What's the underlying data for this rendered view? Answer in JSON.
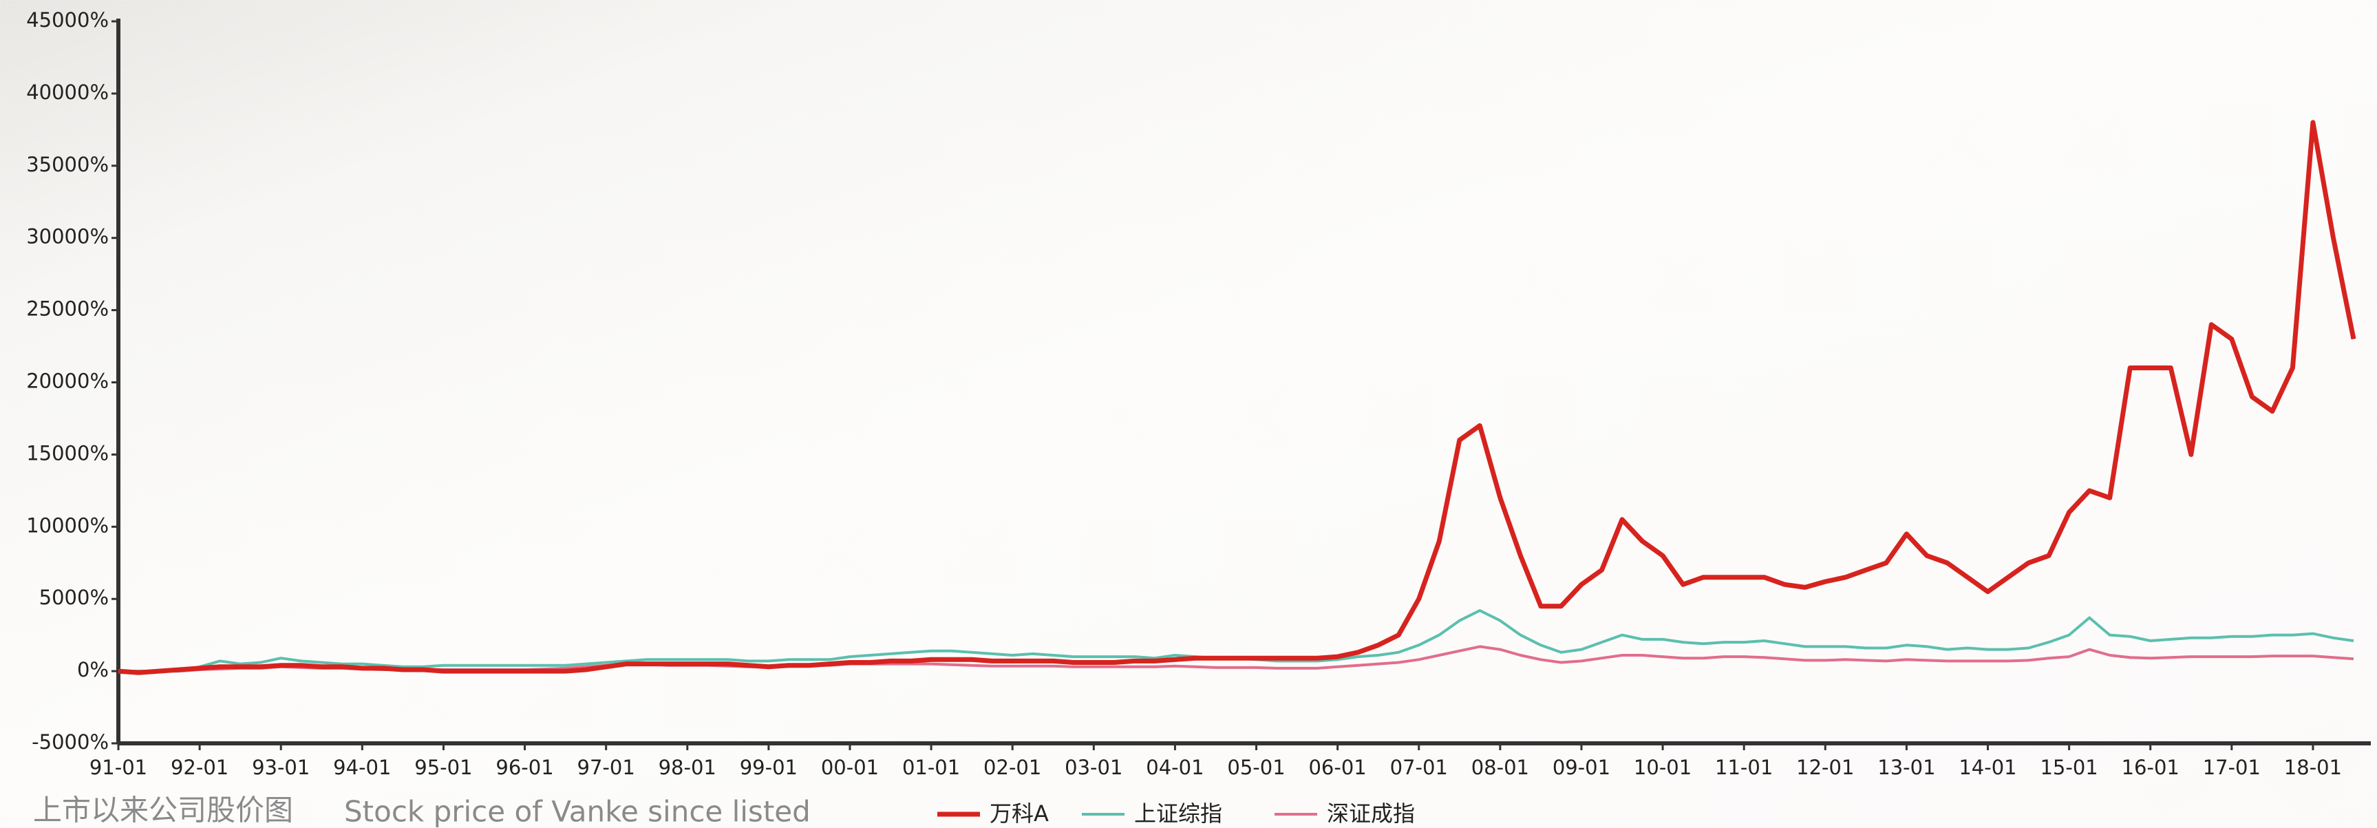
{
  "chart_data": {
    "type": "line",
    "x": [
      "91-01",
      "91-04",
      "91-07",
      "91-10",
      "92-01",
      "92-04",
      "92-07",
      "92-10",
      "93-01",
      "93-04",
      "93-07",
      "93-10",
      "94-01",
      "94-04",
      "94-07",
      "94-10",
      "95-01",
      "95-04",
      "95-07",
      "95-10",
      "96-01",
      "96-04",
      "96-07",
      "96-10",
      "97-01",
      "97-04",
      "97-07",
      "97-10",
      "98-01",
      "98-04",
      "98-07",
      "98-10",
      "99-01",
      "99-04",
      "99-07",
      "99-10",
      "00-01",
      "00-04",
      "00-07",
      "00-10",
      "01-01",
      "01-04",
      "01-07",
      "01-10",
      "02-01",
      "02-04",
      "02-07",
      "02-10",
      "03-01",
      "03-04",
      "03-07",
      "03-10",
      "04-01",
      "04-04",
      "04-07",
      "04-10",
      "05-01",
      "05-04",
      "05-07",
      "05-10",
      "06-01",
      "06-04",
      "06-07",
      "06-10",
      "07-01",
      "07-04",
      "07-07",
      "07-10",
      "08-01",
      "08-04",
      "08-07",
      "08-10",
      "09-01",
      "09-04",
      "09-07",
      "09-10",
      "10-01",
      "10-04",
      "10-07",
      "10-10",
      "11-01",
      "11-04",
      "11-07",
      "11-10",
      "12-01",
      "12-04",
      "12-07",
      "12-10",
      "13-01",
      "13-04",
      "13-07",
      "13-10",
      "14-01",
      "14-04",
      "14-07",
      "14-10",
      "15-01",
      "15-04",
      "15-07",
      "15-10",
      "16-01",
      "16-04",
      "16-07",
      "16-10",
      "17-01",
      "17-04",
      "17-07",
      "17-10",
      "18-01",
      "18-04",
      "18-07"
    ],
    "xticks": [
      "91-01",
      "92-01",
      "93-01",
      "94-01",
      "95-01",
      "96-01",
      "97-01",
      "98-01",
      "99-01",
      "00-01",
      "01-01",
      "02-01",
      "03-01",
      "04-01",
      "05-01",
      "06-01",
      "07-01",
      "08-01",
      "09-01",
      "10-01",
      "11-01",
      "12-01",
      "13-01",
      "14-01",
      "15-01",
      "16-01",
      "17-01",
      "18-01"
    ],
    "ylim": [
      -5000,
      45000
    ],
    "yticks": [
      {
        "value": -5000,
        "label": "-5000%"
      },
      {
        "value": 0,
        "label": "0%"
      },
      {
        "value": 5000,
        "label": "5000%"
      },
      {
        "value": 10000,
        "label": "10000%"
      },
      {
        "value": 15000,
        "label": "15000%"
      },
      {
        "value": 20000,
        "label": "20000%"
      },
      {
        "value": 25000,
        "label": "25000%"
      },
      {
        "value": 30000,
        "label": "30000%"
      },
      {
        "value": 35000,
        "label": "35000%"
      },
      {
        "value": 40000,
        "label": "40000%"
      },
      {
        "value": 45000,
        "label": "45000%"
      }
    ],
    "grid": false,
    "series": [
      {
        "name": "万科A",
        "color": "#d7231e",
        "values": [
          0,
          -100,
          0,
          100,
          200,
          300,
          300,
          300,
          400,
          400,
          300,
          300,
          200,
          200,
          100,
          100,
          0,
          0,
          0,
          0,
          0,
          0,
          0,
          100,
          300,
          500,
          500,
          500,
          500,
          500,
          500,
          400,
          300,
          400,
          400,
          500,
          600,
          600,
          700,
          700,
          800,
          800,
          800,
          700,
          700,
          700,
          700,
          600,
          600,
          600,
          700,
          700,
          800,
          900,
          900,
          900,
          900,
          900,
          900,
          900,
          1000,
          1300,
          1800,
          2500,
          5000,
          9000,
          16000,
          17000,
          12000,
          8000,
          4500,
          4500,
          6000,
          7000,
          10500,
          9000,
          8000,
          6000,
          6500,
          6500,
          6500,
          6500,
          6000,
          5800,
          6200,
          6500,
          7000,
          7500,
          9500,
          8000,
          7500,
          6500,
          5500,
          6500,
          7500,
          8000,
          11000,
          12500,
          12000,
          21000,
          21000,
          21000,
          15000,
          24000,
          23000,
          19000,
          18000,
          21000,
          38000,
          30000,
          23000
        ]
      },
      {
        "name": "上证综指",
        "color": "#5cbfae",
        "values": [
          0,
          0,
          0,
          0,
          300,
          700,
          500,
          600,
          900,
          700,
          600,
          500,
          500,
          400,
          300,
          300,
          400,
          400,
          400,
          400,
          400,
          400,
          400,
          500,
          600,
          700,
          800,
          800,
          800,
          800,
          800,
          700,
          700,
          800,
          800,
          800,
          1000,
          1100,
          1200,
          1300,
          1400,
          1400,
          1300,
          1200,
          1100,
          1200,
          1100,
          1000,
          1000,
          1000,
          1000,
          900,
          1100,
          1000,
          900,
          900,
          800,
          700,
          700,
          700,
          800,
          1000,
          1100,
          1300,
          1800,
          2500,
          3500,
          4200,
          3500,
          2500,
          1800,
          1300,
          1500,
          2000,
          2500,
          2200,
          2200,
          2000,
          1900,
          2000,
          2000,
          2100,
          1900,
          1700,
          1700,
          1700,
          1600,
          1600,
          1800,
          1700,
          1500,
          1600,
          1500,
          1500,
          1600,
          2000,
          2500,
          3700,
          2500,
          2400,
          2100,
          2200,
          2300,
          2300,
          2400,
          2400,
          2500,
          2500,
          2600,
          2300,
          2100
        ]
      },
      {
        "name": "深证成指",
        "color": "#e26d8c",
        "values": [
          0,
          0,
          0,
          0,
          100,
          150,
          200,
          200,
          300,
          250,
          200,
          200,
          150,
          100,
          100,
          100,
          100,
          100,
          100,
          100,
          100,
          150,
          200,
          300,
          400,
          500,
          500,
          400,
          400,
          400,
          350,
          300,
          300,
          400,
          400,
          400,
          500,
          500,
          500,
          500,
          500,
          450,
          400,
          350,
          350,
          350,
          350,
          300,
          300,
          300,
          300,
          300,
          350,
          300,
          250,
          250,
          250,
          200,
          200,
          200,
          300,
          400,
          500,
          600,
          800,
          1100,
          1400,
          1700,
          1500,
          1100,
          800,
          600,
          700,
          900,
          1100,
          1100,
          1000,
          900,
          900,
          1000,
          1000,
          950,
          850,
          750,
          750,
          800,
          750,
          700,
          800,
          750,
          700,
          700,
          700,
          700,
          750,
          900,
          1000,
          1500,
          1100,
          950,
          900,
          950,
          1000,
          1000,
          1000,
          1000,
          1050,
          1050,
          1050,
          950,
          850
        ]
      }
    ],
    "caption": "上市以来公司股价图",
    "caption_en": "Stock price of Vanke since listed"
  }
}
